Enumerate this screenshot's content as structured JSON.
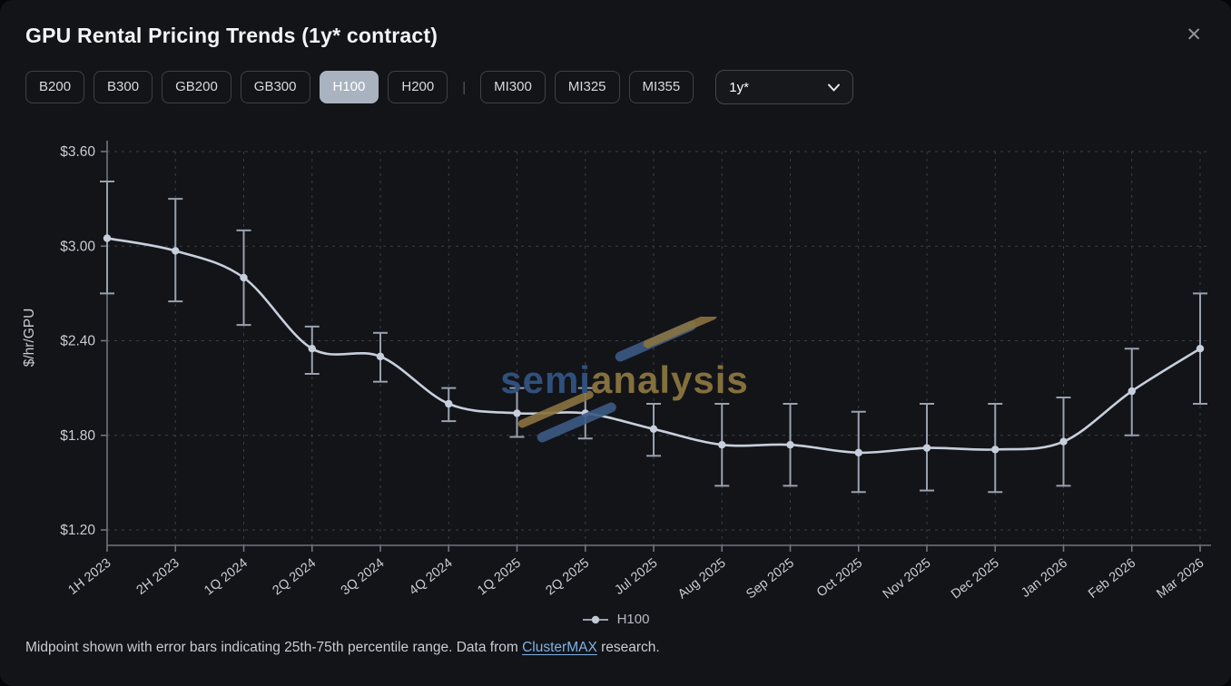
{
  "header": {
    "title": "GPU Rental Pricing Trends (1y* contract)",
    "close_icon": "✕"
  },
  "toolbar": {
    "gpu_groups": [
      [
        "B200",
        "B300",
        "GB200",
        "GB300",
        "H100",
        "H200"
      ],
      [
        "MI300",
        "MI325",
        "MI355"
      ]
    ],
    "selected_gpu": "H100",
    "separator": "|",
    "term_select": {
      "value": "1y*",
      "icon": "chevron-down-icon"
    }
  },
  "chart_data": {
    "type": "line",
    "title": "GPU Rental Pricing Trends (1y* contract)",
    "ylabel": "$/hr/GPU",
    "ylim": [
      1.2,
      3.6
    ],
    "grid": "dashed",
    "yticks": [
      {
        "label": "$3.60",
        "value": 3.6
      },
      {
        "label": "$3.00",
        "value": 3.0
      },
      {
        "label": "$2.40",
        "value": 2.4
      },
      {
        "label": "$1.80",
        "value": 1.8
      },
      {
        "label": "$1.20",
        "value": 1.2
      }
    ],
    "categories": [
      "1H 2023",
      "2H 2023",
      "1Q 2024",
      "2Q 2024",
      "3Q 2024",
      "4Q 2024",
      "1Q 2025",
      "2Q 2025",
      "Jul 2025",
      "Aug 2025",
      "Sep 2025",
      "Oct 2025",
      "Nov 2025",
      "Dec 2025",
      "Jan 2026",
      "Feb 2026",
      "Mar 2026"
    ],
    "series": [
      {
        "name": "H100",
        "midpoint": [
          3.05,
          2.97,
          2.8,
          2.35,
          2.3,
          2.0,
          1.94,
          1.94,
          1.84,
          1.74,
          1.74,
          1.69,
          1.72,
          1.71,
          1.76,
          2.08,
          2.35
        ],
        "p25": [
          2.7,
          2.65,
          2.5,
          2.19,
          2.14,
          1.89,
          1.79,
          1.78,
          1.67,
          1.48,
          1.48,
          1.44,
          1.45,
          1.44,
          1.48,
          1.8,
          2.0
        ],
        "p75": [
          3.41,
          3.3,
          3.1,
          2.49,
          2.45,
          2.1,
          2.1,
          2.1,
          2.0,
          2.0,
          2.0,
          1.95,
          2.0,
          2.0,
          2.04,
          2.35,
          2.7
        ]
      }
    ],
    "legend_position": "bottom",
    "error_bars": "25th-75th percentile"
  },
  "watermark": {
    "part1": "semi",
    "part2": "analysis"
  },
  "footer": {
    "text_before": "Midpoint shown with error bars indicating 25th-75th percentile range. Data from ",
    "link": "ClusterMAX",
    "text_after": " research."
  },
  "colors": {
    "series_line": "#c7cfdc",
    "error_bar": "#98a1ad",
    "selected_button_bg": "#a9b3c0",
    "link": "#7fb2e6",
    "watermark_blue": "#30507c",
    "watermark_gold": "#84703d"
  }
}
